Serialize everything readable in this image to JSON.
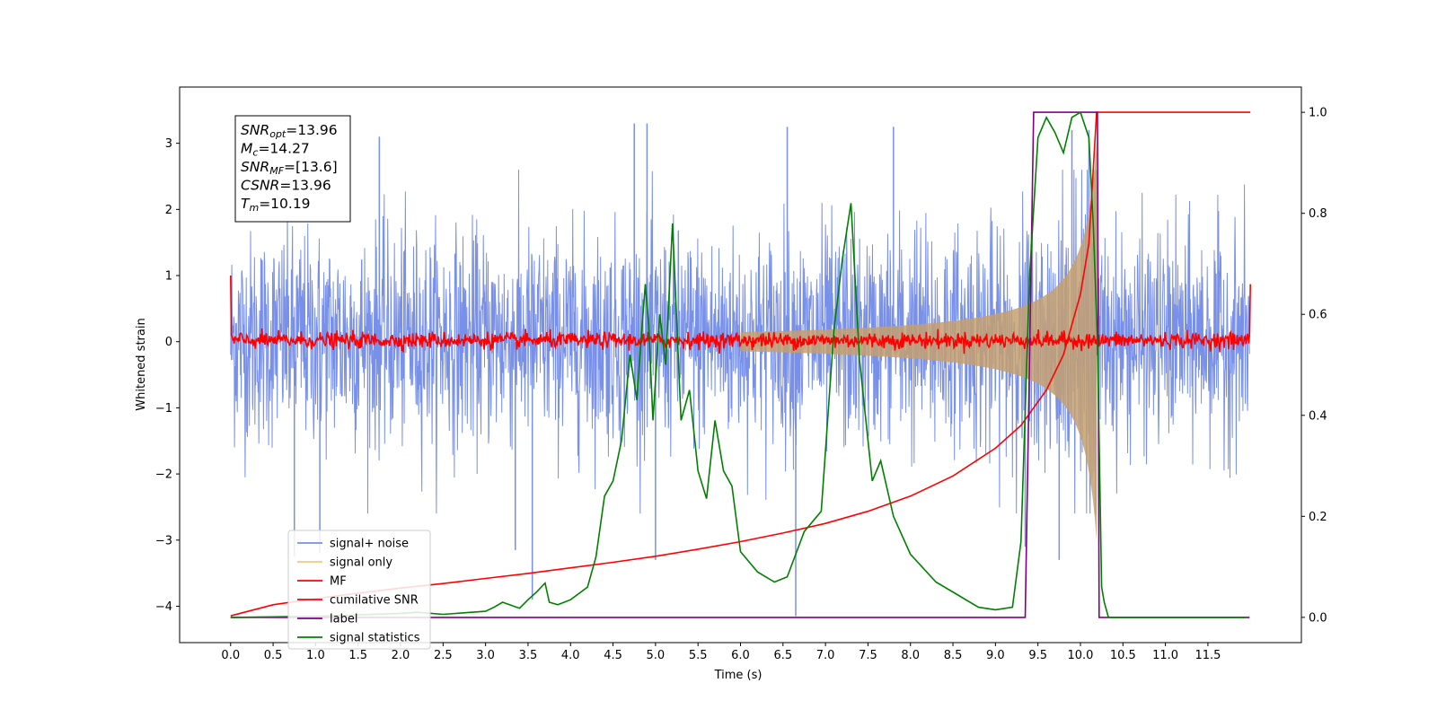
{
  "chart_data": {
    "type": "line",
    "xlabel": "Time (s)",
    "ylabel_left": "Whitened strain",
    "ylabel_right": "",
    "xlim": [
      -0.6,
      12.6
    ],
    "ylim_left": [
      -4.55,
      3.85
    ],
    "ylim_right": [
      -0.05,
      1.05
    ],
    "x_ticks": [
      0.0,
      0.5,
      1.0,
      1.5,
      2.0,
      2.5,
      3.0,
      3.5,
      4.0,
      4.5,
      5.0,
      5.5,
      6.0,
      6.5,
      7.0,
      7.5,
      8.0,
      8.5,
      9.0,
      9.5,
      10.0,
      10.5,
      11.0,
      11.5
    ],
    "x_tick_labels": [
      "0.0",
      "0.5",
      "1.0",
      "1.5",
      "2.0",
      "2.5",
      "3.0",
      "3.5",
      "4.0",
      "4.5",
      "5.0",
      "5.5",
      "6.0",
      "6.5",
      "7.0",
      "7.5",
      "8.0",
      "8.5",
      "9.0",
      "9.5",
      "10.0",
      "10.5",
      "11.0",
      "11.5"
    ],
    "y_left_ticks": [
      3,
      2,
      1,
      0,
      -1,
      -2,
      -3,
      -4
    ],
    "y_left_tick_labels": [
      "3",
      "2",
      "1",
      "0",
      "−1",
      "−2",
      "−3",
      "−4"
    ],
    "y_right_ticks": [
      1.0,
      0.8,
      0.6,
      0.4,
      0.2,
      0.0
    ],
    "y_right_tick_labels": [
      "1.0",
      "0.8",
      "0.6",
      "0.4",
      "0.2",
      "0.0"
    ],
    "grid": false,
    "legend_position": "lower-left",
    "info_box": {
      "lines": [
        {
          "base": "SNR",
          "sub": "opt",
          "value": "=13.96"
        },
        {
          "base": "M",
          "sub": "c",
          "value": "=14.27"
        },
        {
          "base": "SNR",
          "sub": "MF",
          "value": "=[13.6]"
        },
        {
          "base": "CSNR",
          "sub": "",
          "value": "=13.96"
        },
        {
          "base": "T",
          "sub": "m",
          "value": "=10.19"
        }
      ]
    },
    "series": [
      {
        "name": "signal+ noise",
        "color": "#7890e8",
        "axis": "left",
        "description_values": {
          "x_range": [
            0.0,
            11.99
          ],
          "typical_band": [
            -1.5,
            1.6
          ],
          "extremes": [
            -4.15,
            3.3
          ]
        },
        "spikes": [
          {
            "x": 1.75,
            "y": 3.1
          },
          {
            "x": 4.75,
            "y": 3.3
          },
          {
            "x": 4.9,
            "y": 3.3
          },
          {
            "x": 6.55,
            "y": 3.25
          },
          {
            "x": 7.8,
            "y": 3.25
          },
          {
            "x": 10.1,
            "y": 3.2
          },
          {
            "x": 9.9,
            "y": 3.2
          },
          {
            "x": 3.55,
            "y": -3.9
          },
          {
            "x": 6.65,
            "y": -4.15
          },
          {
            "x": 5.0,
            "y": -3.3
          },
          {
            "x": 1.05,
            "y": -3.2
          },
          {
            "x": 0.75,
            "y": -3.25
          },
          {
            "x": 3.35,
            "y": -3.15
          },
          {
            "x": 9.35,
            "y": -3.1
          },
          {
            "x": 9.75,
            "y": -3.3
          }
        ]
      },
      {
        "name": "signal only",
        "color": "#f5c87a",
        "axis": "left",
        "description_values": {
          "chirp_start": 6.0,
          "merger_time": 10.19,
          "peak_amplitude": 3.0
        }
      },
      {
        "name": "MF",
        "color": "#ff0000",
        "axis": "left",
        "description_values": {
          "x_range": [
            0.0,
            12.0
          ],
          "typical_band": [
            -0.15,
            0.2
          ],
          "edge_start": 1.0,
          "edge_end": 0.87
        }
      },
      {
        "name": "cumilative SNR",
        "color": "#ff0000",
        "axis": "right",
        "x": [
          0.0,
          0.5,
          1.0,
          1.5,
          2.0,
          2.5,
          3.0,
          3.5,
          4.0,
          4.5,
          5.0,
          5.5,
          6.0,
          6.5,
          7.0,
          7.5,
          8.0,
          8.5,
          9.0,
          9.3,
          9.6,
          9.8,
          10.0,
          10.1,
          10.19,
          12.0
        ],
        "values": [
          0.003,
          0.025,
          0.037,
          0.048,
          0.058,
          0.067,
          0.077,
          0.087,
          0.098,
          0.109,
          0.121,
          0.135,
          0.15,
          0.167,
          0.186,
          0.21,
          0.24,
          0.28,
          0.335,
          0.38,
          0.45,
          0.52,
          0.64,
          0.74,
          1.0,
          1.0
        ]
      },
      {
        "name": "label",
        "color": "#800080",
        "axis": "right",
        "x": [
          0.0,
          9.35,
          9.45,
          10.2,
          10.22,
          11.99
        ],
        "values": [
          0.0,
          0.0,
          1.0,
          1.0,
          0.0,
          0.0
        ]
      },
      {
        "name": "signal statistics",
        "color": "#008000",
        "axis": "right",
        "x": [
          0.0,
          1.0,
          2.0,
          2.2,
          2.5,
          3.0,
          3.1,
          3.2,
          3.4,
          3.5,
          3.6,
          3.7,
          3.75,
          3.85,
          4.0,
          4.2,
          4.3,
          4.4,
          4.5,
          4.6,
          4.7,
          4.78,
          4.83,
          4.88,
          4.92,
          4.97,
          5.05,
          5.12,
          5.2,
          5.3,
          5.4,
          5.5,
          5.6,
          5.7,
          5.8,
          5.9,
          6.0,
          6.2,
          6.4,
          6.55,
          6.75,
          6.95,
          7.1,
          7.2,
          7.3,
          7.4,
          7.55,
          7.65,
          7.8,
          8.0,
          8.3,
          8.55,
          8.8,
          9.0,
          9.2,
          9.3,
          9.4,
          9.5,
          9.6,
          9.7,
          9.8,
          9.9,
          10.0,
          10.1,
          10.15,
          10.2,
          10.25,
          10.28,
          10.33,
          11.95
        ],
        "values": [
          0.0,
          0.002,
          0.008,
          0.01,
          0.006,
          0.012,
          0.02,
          0.03,
          0.018,
          0.035,
          0.05,
          0.068,
          0.03,
          0.025,
          0.035,
          0.06,
          0.12,
          0.24,
          0.27,
          0.35,
          0.52,
          0.43,
          0.55,
          0.66,
          0.58,
          0.39,
          0.6,
          0.5,
          0.78,
          0.39,
          0.45,
          0.29,
          0.235,
          0.39,
          0.29,
          0.26,
          0.13,
          0.09,
          0.07,
          0.08,
          0.17,
          0.21,
          0.57,
          0.71,
          0.82,
          0.51,
          0.27,
          0.31,
          0.2,
          0.125,
          0.07,
          0.045,
          0.02,
          0.015,
          0.02,
          0.15,
          0.67,
          0.95,
          0.99,
          0.96,
          0.92,
          0.99,
          1.0,
          0.95,
          0.78,
          0.55,
          0.06,
          0.03,
          0.0,
          0.0
        ]
      }
    ]
  }
}
